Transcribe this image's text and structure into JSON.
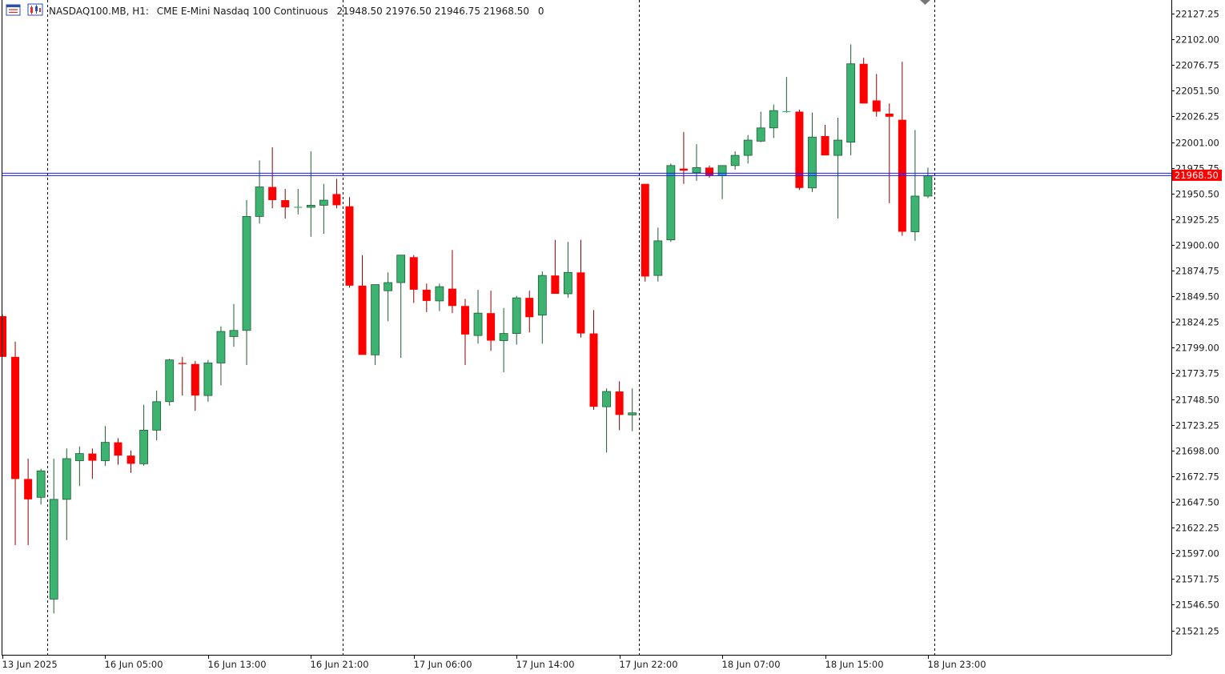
{
  "header": {
    "symbol": "NASDAQ100.MB, H1:",
    "description": "CME E-Mini Nasdaq 100 Continuous",
    "ohlc": "21948.50 21976.50 21946.75 21968.50",
    "volume": "0",
    "icons": [
      "trade-list-icon",
      "chart-type-icon"
    ]
  },
  "colors": {
    "bull": "#3cb371",
    "bear": "#ff0000",
    "outline": "#1e5c32",
    "grid": "#000000",
    "bid_line": "#c80000",
    "ask_line": "#1a1aff",
    "price_tag": "#ff0000"
  },
  "chart_data": {
    "type": "candlestick",
    "title": "",
    "current_price": "21968.50",
    "ylim": [
      21500,
      22140
    ],
    "y_ticks": [
      "21521.25",
      "21546.50",
      "21571.75",
      "21597.00",
      "21622.25",
      "21647.50",
      "21672.75",
      "21698.00",
      "21723.25",
      "21748.50",
      "21773.75",
      "21799.00",
      "21824.25",
      "21849.50",
      "21874.75",
      "21900.00",
      "21925.25",
      "21950.50",
      "21975.75",
      "22001.00",
      "22026.25",
      "22051.50",
      "22076.75",
      "22102.00",
      "22127.25"
    ],
    "x_ticks": [
      {
        "index": 0,
        "label": "13 Jun 2025"
      },
      {
        "index": 8,
        "label": "16 Jun 05:00"
      },
      {
        "index": 16,
        "label": "16 Jun 13:00"
      },
      {
        "index": 24,
        "label": "16 Jun 21:00"
      },
      {
        "index": 32,
        "label": "17 Jun 06:00"
      },
      {
        "index": 40,
        "label": "17 Jun 14:00"
      },
      {
        "index": 48,
        "label": "17 Jun 22:00"
      },
      {
        "index": 56,
        "label": "18 Jun 07:00"
      },
      {
        "index": 64,
        "label": "18 Jun 15:00"
      },
      {
        "index": 72,
        "label": "18 Jun 23:00"
      }
    ],
    "separators": [
      3.5,
      26.5,
      49.5,
      72.5
    ],
    "ohlc": [
      [
        21830,
        21832,
        21790,
        21790
      ],
      [
        21790,
        21805,
        21605,
        21670
      ],
      [
        21670,
        21690,
        21605,
        21650
      ],
      [
        21652,
        21680,
        21645,
        21678
      ],
      [
        21552,
        21690,
        21538,
        21650
      ],
      [
        21650,
        21700,
        21610,
        21690
      ],
      [
        21688,
        21702,
        21663,
        21695
      ],
      [
        21695,
        21700,
        21670,
        21688
      ],
      [
        21688,
        21722,
        21683,
        21706
      ],
      [
        21706,
        21710,
        21684,
        21693
      ],
      [
        21693,
        21698,
        21676,
        21685
      ],
      [
        21685,
        21743,
        21683,
        21718
      ],
      [
        21718,
        21757,
        21708,
        21746
      ],
      [
        21746,
        21788,
        21742,
        21787
      ],
      [
        21784,
        21790,
        21752,
        21783
      ],
      [
        21783,
        21786,
        21737,
        21752
      ],
      [
        21752,
        21787,
        21746,
        21784
      ],
      [
        21784,
        21820,
        21762,
        21815
      ],
      [
        21810,
        21842,
        21800,
        21816
      ],
      [
        21816,
        21944,
        21782,
        21928
      ],
      [
        21928,
        21983,
        21921,
        21957
      ],
      [
        21957,
        21996,
        21936,
        21944
      ],
      [
        21944,
        21955,
        21926,
        21937
      ],
      [
        21937,
        21955,
        21930,
        21937
      ],
      [
        21937,
        21992,
        21908,
        21939
      ],
      [
        21939,
        21960,
        21911,
        21944
      ],
      [
        21950,
        21965,
        21936,
        21939
      ],
      [
        21938,
        21947,
        21858,
        21860
      ],
      [
        21860,
        21890,
        21792,
        21792
      ],
      [
        21792,
        21861,
        21782,
        21861
      ],
      [
        21855,
        21873,
        21825,
        21863
      ],
      [
        21863,
        21889,
        21789,
        21890
      ],
      [
        21888,
        21890,
        21843,
        21856
      ],
      [
        21856,
        21862,
        21834,
        21845
      ],
      [
        21845,
        21862,
        21835,
        21859
      ],
      [
        21857,
        21895,
        21833,
        21840
      ],
      [
        21840,
        21847,
        21782,
        21812
      ],
      [
        21811,
        21856,
        21803,
        21833
      ],
      [
        21833,
        21855,
        21796,
        21806
      ],
      [
        21806,
        21838,
        21775,
        21813
      ],
      [
        21813,
        21850,
        21802,
        21848
      ],
      [
        21848,
        21855,
        21814,
        21829
      ],
      [
        21831,
        21874,
        21803,
        21870
      ],
      [
        21870,
        21905,
        21858,
        21852
      ],
      [
        21852,
        21903,
        21848,
        21873
      ],
      [
        21873,
        21905,
        21809,
        21813
      ],
      [
        21813,
        21836,
        21738,
        21741
      ],
      [
        21741,
        21759,
        21696,
        21756
      ],
      [
        21756,
        21766,
        21718,
        21733
      ],
      [
        21733,
        21759,
        21717,
        21735
      ],
      [
        21960,
        21960,
        21864,
        21869
      ],
      [
        21870,
        21917,
        21864,
        21904
      ],
      [
        21905,
        21980,
        21903,
        21978
      ],
      [
        21975,
        22011,
        21960,
        21973
      ],
      [
        21971,
        21999,
        21963,
        21976
      ],
      [
        21976,
        21978,
        21966,
        21968
      ],
      [
        21968,
        21978,
        21945,
        21978
      ],
      [
        21978,
        21992,
        21974,
        21988
      ],
      [
        21988,
        22008,
        21980,
        22003
      ],
      [
        22002,
        22031,
        22001,
        22015
      ],
      [
        22015,
        22038,
        22005,
        22032
      ],
      [
        22031,
        22065,
        22030,
        22031
      ],
      [
        22031,
        22033,
        21954,
        21956
      ],
      [
        21956,
        22030,
        21952,
        22006
      ],
      [
        22007,
        22018,
        21989,
        21988
      ],
      [
        21988,
        22025,
        21926,
        22003
      ],
      [
        22001,
        22097,
        21988,
        22078
      ],
      [
        22078,
        22084,
        22040,
        22039
      ],
      [
        22042,
        22068,
        22026,
        22031
      ],
      [
        22029,
        22039,
        21941,
        22026
      ],
      [
        22023,
        22080,
        21909,
        21913
      ],
      [
        21913,
        22013,
        21904,
        21948
      ],
      [
        21948,
        21976,
        21946,
        21968
      ]
    ]
  }
}
